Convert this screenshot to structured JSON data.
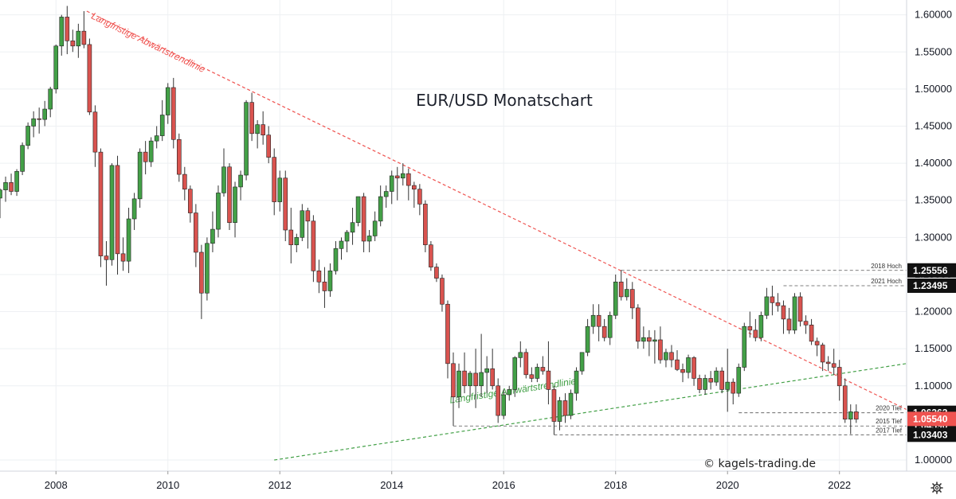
{
  "chart_data": {
    "type": "candlestick",
    "title": "EUR/USD Monatschart",
    "credit": "© kagels-trading.de",
    "x_axis": {
      "labels": [
        "2008",
        "2010",
        "2012",
        "2014",
        "2016",
        "2018",
        "2020",
        "2022"
      ],
      "range": [
        2007.0,
        2023.2
      ]
    },
    "y_axis": {
      "ticks": [
        "1.60000",
        "1.55000",
        "1.50000",
        "1.45000",
        "1.40000",
        "1.35000",
        "1.30000",
        "1.25000",
        "1.20000",
        "1.15000",
        "1.10000",
        "1.00000"
      ],
      "tick_values": [
        1.6,
        1.55,
        1.5,
        1.45,
        1.4,
        1.35,
        1.3,
        1.25,
        1.2,
        1.15,
        1.1,
        1.0
      ],
      "range": [
        0.985,
        1.62
      ]
    },
    "grid": true,
    "colors": {
      "up": "#26a69a",
      "down": "#ef5350",
      "upbody": "#43a047",
      "downbody": "#d9534f",
      "wick": "#333333"
    },
    "trendlines": [
      {
        "name": "Langfristige Abwärtstrendlinie",
        "color": "#ef5350",
        "from": [
          2008.55,
          1.605
        ],
        "to": [
          2023.2,
          1.068
        ]
      },
      {
        "name": "Langfristige Aufwärtstrendlinie",
        "color": "#43a047",
        "from": [
          2011.9,
          1.0
        ],
        "to": [
          2023.2,
          1.13
        ]
      }
    ],
    "levels": [
      {
        "label": "2018 Hoch",
        "value": 1.25556,
        "display": "1.25556",
        "start": 2018.1
      },
      {
        "label": "2021 Hoch",
        "value": 1.23495,
        "display": "1.23495",
        "start": 2021.0
      },
      {
        "label": "2020 Tief",
        "value": 1.06363,
        "display": "1.06363",
        "start": 2020.2
      },
      {
        "label": "2015 Tief",
        "value": 1.0459,
        "display": "1.04590",
        "start": 2015.1
      },
      {
        "label": "2017 Tief",
        "value": 1.03403,
        "display": "1.03403",
        "start": 2016.9
      }
    ],
    "current_price": {
      "value": 1.0554,
      "display": "1.05540"
    },
    "candles": [
      [
        2007.0,
        1.353,
        1.366,
        1.326,
        1.364
      ],
      [
        2007.1,
        1.364,
        1.382,
        1.348,
        1.374
      ],
      [
        2007.2,
        1.374,
        1.386,
        1.357,
        1.362
      ],
      [
        2007.3,
        1.362,
        1.392,
        1.356,
        1.389
      ],
      [
        2007.4,
        1.389,
        1.428,
        1.384,
        1.424
      ],
      [
        2007.5,
        1.424,
        1.455,
        1.419,
        1.45
      ],
      [
        2007.6,
        1.45,
        1.47,
        1.435,
        1.46
      ],
      [
        2007.7,
        1.46,
        1.475,
        1.44,
        1.459
      ],
      [
        2007.8,
        1.459,
        1.484,
        1.45,
        1.473
      ],
      [
        2007.9,
        1.473,
        1.503,
        1.462,
        1.5
      ],
      [
        2008.0,
        1.5,
        1.56,
        1.494,
        1.558
      ],
      [
        2008.1,
        1.558,
        1.6,
        1.545,
        1.597
      ],
      [
        2008.2,
        1.597,
        1.612,
        1.547,
        1.565
      ],
      [
        2008.3,
        1.565,
        1.58,
        1.55,
        1.558
      ],
      [
        2008.4,
        1.558,
        1.588,
        1.542,
        1.578
      ],
      [
        2008.5,
        1.578,
        1.605,
        1.555,
        1.56
      ],
      [
        2008.6,
        1.56,
        1.568,
        1.465,
        1.469
      ],
      [
        2008.7,
        1.469,
        1.478,
        1.395,
        1.415
      ],
      [
        2008.8,
        1.415,
        1.42,
        1.26,
        1.275
      ],
      [
        2008.9,
        1.275,
        1.295,
        1.235,
        1.27
      ],
      [
        2009.0,
        1.27,
        1.4,
        1.262,
        1.397
      ],
      [
        2009.1,
        1.397,
        1.41,
        1.25,
        1.278
      ],
      [
        2009.2,
        1.278,
        1.3,
        1.255,
        1.268
      ],
      [
        2009.3,
        1.268,
        1.34,
        1.252,
        1.325
      ],
      [
        2009.4,
        1.325,
        1.36,
        1.31,
        1.352
      ],
      [
        2009.5,
        1.352,
        1.42,
        1.34,
        1.415
      ],
      [
        2009.6,
        1.415,
        1.43,
        1.385,
        1.402
      ],
      [
        2009.7,
        1.402,
        1.435,
        1.395,
        1.43
      ],
      [
        2009.8,
        1.43,
        1.45,
        1.42,
        1.437
      ],
      [
        2009.9,
        1.437,
        1.485,
        1.43,
        1.465
      ],
      [
        2010.0,
        1.465,
        1.508,
        1.453,
        1.502
      ],
      [
        2010.1,
        1.502,
        1.515,
        1.42,
        1.432
      ],
      [
        2010.2,
        1.432,
        1.44,
        1.375,
        1.385
      ],
      [
        2010.3,
        1.385,
        1.395,
        1.35,
        1.365
      ],
      [
        2010.4,
        1.365,
        1.37,
        1.32,
        1.333
      ],
      [
        2010.5,
        1.333,
        1.345,
        1.26,
        1.28
      ],
      [
        2010.6,
        1.28,
        1.29,
        1.19,
        1.225
      ],
      [
        2010.7,
        1.225,
        1.3,
        1.215,
        1.292
      ],
      [
        2010.8,
        1.292,
        1.335,
        1.28,
        1.311
      ],
      [
        2010.9,
        1.311,
        1.37,
        1.3,
        1.36
      ],
      [
        2011.0,
        1.36,
        1.42,
        1.355,
        1.395
      ],
      [
        2011.1,
        1.395,
        1.4,
        1.31,
        1.32
      ],
      [
        2011.2,
        1.32,
        1.375,
        1.3,
        1.368
      ],
      [
        2011.3,
        1.368,
        1.39,
        1.35,
        1.384
      ],
      [
        2011.4,
        1.384,
        1.485,
        1.377,
        1.482
      ],
      [
        2011.5,
        1.482,
        1.495,
        1.43,
        1.44
      ],
      [
        2011.6,
        1.44,
        1.458,
        1.42,
        1.452
      ],
      [
        2011.7,
        1.452,
        1.47,
        1.425,
        1.438
      ],
      [
        2011.8,
        1.438,
        1.45,
        1.4,
        1.408
      ],
      [
        2011.9,
        1.408,
        1.42,
        1.33,
        1.348
      ],
      [
        2012.0,
        1.348,
        1.39,
        1.335,
        1.38
      ],
      [
        2012.1,
        1.38,
        1.39,
        1.295,
        1.31
      ],
      [
        2012.2,
        1.31,
        1.34,
        1.265,
        1.29
      ],
      [
        2012.3,
        1.29,
        1.305,
        1.28,
        1.3
      ],
      [
        2012.4,
        1.3,
        1.345,
        1.295,
        1.336
      ],
      [
        2012.5,
        1.336,
        1.34,
        1.285,
        1.322
      ],
      [
        2012.6,
        1.322,
        1.33,
        1.24,
        1.255
      ],
      [
        2012.7,
        1.255,
        1.27,
        1.225,
        1.24
      ],
      [
        2012.8,
        1.24,
        1.26,
        1.205,
        1.228
      ],
      [
        2012.9,
        1.228,
        1.265,
        1.22,
        1.255
      ],
      [
        2013.0,
        1.255,
        1.295,
        1.25,
        1.285
      ],
      [
        2013.1,
        1.285,
        1.3,
        1.27,
        1.295
      ],
      [
        2013.2,
        1.295,
        1.31,
        1.28,
        1.307
      ],
      [
        2013.3,
        1.307,
        1.34,
        1.29,
        1.32
      ],
      [
        2013.4,
        1.32,
        1.355,
        1.315,
        1.355
      ],
      [
        2013.5,
        1.355,
        1.36,
        1.28,
        1.295
      ],
      [
        2013.6,
        1.295,
        1.31,
        1.28,
        1.302
      ],
      [
        2013.7,
        1.302,
        1.335,
        1.295,
        1.322
      ],
      [
        2013.8,
        1.322,
        1.37,
        1.315,
        1.355
      ],
      [
        2013.9,
        1.355,
        1.37,
        1.34,
        1.362
      ],
      [
        2014.0,
        1.362,
        1.39,
        1.345,
        1.383
      ],
      [
        2014.1,
        1.383,
        1.395,
        1.35,
        1.38
      ],
      [
        2014.2,
        1.38,
        1.4,
        1.37,
        1.386
      ],
      [
        2014.3,
        1.386,
        1.393,
        1.35,
        1.37
      ],
      [
        2014.4,
        1.37,
        1.375,
        1.34,
        1.365
      ],
      [
        2014.5,
        1.365,
        1.372,
        1.33,
        1.345
      ],
      [
        2014.6,
        1.345,
        1.35,
        1.28,
        1.29
      ],
      [
        2014.7,
        1.29,
        1.295,
        1.255,
        1.26
      ],
      [
        2014.8,
        1.26,
        1.265,
        1.24,
        1.245
      ],
      [
        2014.9,
        1.245,
        1.25,
        1.2,
        1.21
      ],
      [
        2015.0,
        1.21,
        1.215,
        1.11,
        1.13
      ],
      [
        2015.1,
        1.13,
        1.145,
        1.046,
        1.085
      ],
      [
        2015.2,
        1.085,
        1.13,
        1.07,
        1.12
      ],
      [
        2015.3,
        1.12,
        1.145,
        1.09,
        1.1
      ],
      [
        2015.4,
        1.1,
        1.12,
        1.085,
        1.117
      ],
      [
        2015.5,
        1.117,
        1.15,
        1.07,
        1.1
      ],
      [
        2015.6,
        1.1,
        1.17,
        1.085,
        1.118
      ],
      [
        2015.7,
        1.118,
        1.14,
        1.09,
        1.123
      ],
      [
        2015.8,
        1.123,
        1.15,
        1.095,
        1.1
      ],
      [
        2015.9,
        1.1,
        1.11,
        1.05,
        1.06
      ],
      [
        2016.0,
        1.06,
        1.095,
        1.055,
        1.088
      ],
      [
        2016.1,
        1.088,
        1.1,
        1.08,
        1.095
      ],
      [
        2016.2,
        1.095,
        1.14,
        1.085,
        1.138
      ],
      [
        2016.3,
        1.138,
        1.16,
        1.125,
        1.145
      ],
      [
        2016.4,
        1.145,
        1.15,
        1.11,
        1.115
      ],
      [
        2016.5,
        1.115,
        1.125,
        1.105,
        1.11
      ],
      [
        2016.6,
        1.11,
        1.13,
        1.105,
        1.125
      ],
      [
        2016.7,
        1.125,
        1.14,
        1.115,
        1.12
      ],
      [
        2016.8,
        1.12,
        1.16,
        1.075,
        1.095
      ],
      [
        2016.9,
        1.095,
        1.1,
        1.034,
        1.052
      ],
      [
        2017.0,
        1.052,
        1.085,
        1.04,
        1.08
      ],
      [
        2017.1,
        1.08,
        1.09,
        1.05,
        1.06
      ],
      [
        2017.2,
        1.06,
        1.095,
        1.055,
        1.09
      ],
      [
        2017.3,
        1.09,
        1.125,
        1.08,
        1.12
      ],
      [
        2017.4,
        1.12,
        1.145,
        1.115,
        1.145
      ],
      [
        2017.5,
        1.145,
        1.19,
        1.14,
        1.18
      ],
      [
        2017.6,
        1.18,
        1.21,
        1.17,
        1.195
      ],
      [
        2017.7,
        1.195,
        1.21,
        1.16,
        1.18
      ],
      [
        2017.8,
        1.18,
        1.19,
        1.16,
        1.165
      ],
      [
        2017.9,
        1.165,
        1.2,
        1.155,
        1.195
      ],
      [
        2018.0,
        1.195,
        1.25,
        1.19,
        1.24
      ],
      [
        2018.1,
        1.24,
        1.256,
        1.215,
        1.22
      ],
      [
        2018.2,
        1.22,
        1.245,
        1.215,
        1.23
      ],
      [
        2018.3,
        1.23,
        1.24,
        1.19,
        1.205
      ],
      [
        2018.4,
        1.205,
        1.21,
        1.15,
        1.16
      ],
      [
        2018.5,
        1.16,
        1.18,
        1.15,
        1.165
      ],
      [
        2018.6,
        1.165,
        1.175,
        1.14,
        1.16
      ],
      [
        2018.7,
        1.16,
        1.175,
        1.13,
        1.162
      ],
      [
        2018.8,
        1.162,
        1.18,
        1.13,
        1.135
      ],
      [
        2018.9,
        1.135,
        1.15,
        1.125,
        1.145
      ],
      [
        2019.0,
        1.145,
        1.155,
        1.125,
        1.135
      ],
      [
        2019.1,
        1.135,
        1.148,
        1.12,
        1.122
      ],
      [
        2019.2,
        1.122,
        1.13,
        1.105,
        1.118
      ],
      [
        2019.3,
        1.118,
        1.142,
        1.11,
        1.138
      ],
      [
        2019.4,
        1.138,
        1.14,
        1.1,
        1.11
      ],
      [
        2019.5,
        1.11,
        1.115,
        1.09,
        1.095
      ],
      [
        2019.6,
        1.095,
        1.115,
        1.088,
        1.11
      ],
      [
        2019.7,
        1.11,
        1.12,
        1.095,
        1.105
      ],
      [
        2019.8,
        1.105,
        1.125,
        1.1,
        1.12
      ],
      [
        2019.9,
        1.12,
        1.125,
        1.09,
        1.095
      ],
      [
        2020.0,
        1.095,
        1.15,
        1.065,
        1.105
      ],
      [
        2020.1,
        1.105,
        1.11,
        1.075,
        1.09
      ],
      [
        2020.2,
        1.09,
        1.13,
        1.085,
        1.125
      ],
      [
        2020.3,
        1.125,
        1.185,
        1.12,
        1.18
      ],
      [
        2020.4,
        1.18,
        1.2,
        1.165,
        1.175
      ],
      [
        2020.5,
        1.175,
        1.19,
        1.16,
        1.165
      ],
      [
        2020.6,
        1.165,
        1.2,
        1.16,
        1.195
      ],
      [
        2020.7,
        1.195,
        1.232,
        1.19,
        1.22
      ],
      [
        2020.8,
        1.22,
        1.235,
        1.195,
        1.212
      ],
      [
        2020.9,
        1.212,
        1.225,
        1.2,
        1.208
      ],
      [
        2021.0,
        1.208,
        1.215,
        1.17,
        1.19
      ],
      [
        2021.1,
        1.19,
        1.205,
        1.17,
        1.175
      ],
      [
        2021.2,
        1.175,
        1.225,
        1.17,
        1.22
      ],
      [
        2021.3,
        1.22,
        1.226,
        1.18,
        1.187
      ],
      [
        2021.4,
        1.187,
        1.195,
        1.17,
        1.182
      ],
      [
        2021.5,
        1.182,
        1.19,
        1.155,
        1.16
      ],
      [
        2021.6,
        1.16,
        1.165,
        1.14,
        1.155
      ],
      [
        2021.7,
        1.155,
        1.158,
        1.12,
        1.132
      ],
      [
        2021.8,
        1.132,
        1.14,
        1.12,
        1.13
      ],
      [
        2021.9,
        1.13,
        1.15,
        1.115,
        1.125
      ],
      [
        2022.0,
        1.125,
        1.135,
        1.08,
        1.1
      ],
      [
        2022.1,
        1.1,
        1.11,
        1.05,
        1.055
      ],
      [
        2022.2,
        1.055,
        1.075,
        1.035,
        1.065
      ],
      [
        2022.3,
        1.065,
        1.075,
        1.05,
        1.055
      ]
    ]
  }
}
